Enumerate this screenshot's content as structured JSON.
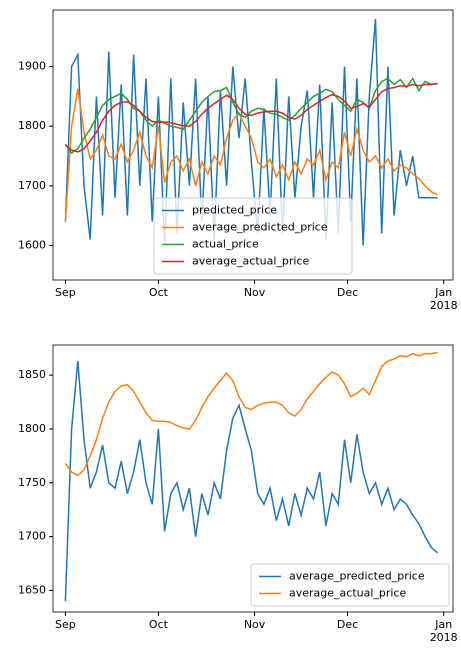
{
  "chart_data": [
    {
      "type": "line",
      "x": [
        0,
        2,
        4,
        6,
        8,
        10,
        12,
        14,
        16,
        18,
        20,
        22,
        24,
        26,
        28,
        30,
        32,
        34,
        36,
        38,
        40,
        42,
        44,
        46,
        48,
        50,
        52,
        54,
        56,
        58,
        60,
        62,
        64,
        66,
        68,
        70,
        72,
        74,
        76,
        78,
        80,
        82,
        84,
        86,
        88,
        90,
        92,
        94,
        96,
        98,
        100,
        102,
        104,
        106,
        108,
        110,
        112,
        114,
        116,
        118,
        120
      ],
      "series": [
        {
          "name": "predicted_price",
          "color": "#1f77b4",
          "values": [
            1640,
            1900,
            1920,
            1700,
            1610,
            1850,
            1650,
            1925,
            1680,
            1870,
            1650,
            1920,
            1700,
            1880,
            1640,
            1850,
            1600,
            1880,
            1620,
            1840,
            1700,
            1880,
            1640,
            1850,
            1610,
            1860,
            1700,
            1900,
            1780,
            1880,
            1740,
            1620,
            1830,
            1650,
            1880,
            1620,
            1850,
            1680,
            1800,
            1860,
            1680,
            1870,
            1610,
            1840,
            1620,
            1900,
            1640,
            1880,
            1600,
            1850,
            1980,
            1620,
            1900,
            1650,
            1760,
            1700,
            1750,
            1680,
            1680,
            1680,
            1680
          ]
        },
        {
          "name": "average_predicted_price",
          "color": "#ff7f0e",
          "values": [
            1640,
            1800,
            1863,
            1790,
            1745,
            1760,
            1785,
            1750,
            1745,
            1770,
            1740,
            1760,
            1790,
            1750,
            1730,
            1800,
            1705,
            1740,
            1750,
            1725,
            1745,
            1700,
            1740,
            1720,
            1750,
            1735,
            1780,
            1810,
            1822,
            1800,
            1780,
            1740,
            1730,
            1745,
            1715,
            1735,
            1710,
            1740,
            1720,
            1745,
            1735,
            1760,
            1710,
            1740,
            1730,
            1790,
            1750,
            1795,
            1760,
            1740,
            1750,
            1730,
            1745,
            1725,
            1735,
            1730,
            1720,
            1712,
            1700,
            1690,
            1685
          ]
        },
        {
          "name": "actual_price",
          "color": "#2ca02c",
          "values": [
            1770,
            1755,
            1762,
            1780,
            1795,
            1815,
            1835,
            1845,
            1850,
            1855,
            1845,
            1830,
            1825,
            1810,
            1800,
            1810,
            1805,
            1800,
            1798,
            1795,
            1810,
            1825,
            1840,
            1850,
            1858,
            1860,
            1865,
            1840,
            1820,
            1815,
            1825,
            1830,
            1828,
            1822,
            1820,
            1815,
            1810,
            1818,
            1830,
            1840,
            1850,
            1855,
            1862,
            1858,
            1845,
            1835,
            1825,
            1845,
            1840,
            1830,
            1860,
            1875,
            1880,
            1870,
            1878,
            1865,
            1880,
            1860,
            1875,
            1870,
            1872
          ]
        },
        {
          "name": "average_actual_price",
          "color": "#d62728",
          "values": [
            1768,
            1760,
            1757,
            1762,
            1775,
            1790,
            1810,
            1825,
            1835,
            1840,
            1841,
            1835,
            1825,
            1815,
            1808,
            1807,
            1807,
            1806,
            1803,
            1801,
            1800,
            1808,
            1820,
            1830,
            1838,
            1845,
            1852,
            1845,
            1830,
            1820,
            1818,
            1822,
            1824,
            1825,
            1825,
            1822,
            1815,
            1812,
            1818,
            1828,
            1835,
            1842,
            1848,
            1853,
            1850,
            1842,
            1830,
            1833,
            1838,
            1832,
            1845,
            1858,
            1863,
            1865,
            1868,
            1867,
            1870,
            1868,
            1870,
            1870,
            1871
          ]
        }
      ],
      "xlim": [
        -4,
        125
      ],
      "xticks": [
        {
          "value": 0,
          "label": "Sep"
        },
        {
          "value": 30,
          "label": "Oct"
        },
        {
          "value": 61,
          "label": "Nov"
        },
        {
          "value": 91,
          "label": "Dec"
        },
        {
          "value": 122,
          "label": "Jan",
          "sublabel": "2018"
        }
      ],
      "ylim": [
        1542,
        1995
      ],
      "yticks": [
        1600,
        1700,
        1800,
        1900
      ],
      "legend": "lower center"
    },
    {
      "type": "line",
      "x": [
        0,
        2,
        4,
        6,
        8,
        10,
        12,
        14,
        16,
        18,
        20,
        22,
        24,
        26,
        28,
        30,
        32,
        34,
        36,
        38,
        40,
        42,
        44,
        46,
        48,
        50,
        52,
        54,
        56,
        58,
        60,
        62,
        64,
        66,
        68,
        70,
        72,
        74,
        76,
        78,
        80,
        82,
        84,
        86,
        88,
        90,
        92,
        94,
        96,
        98,
        100,
        102,
        104,
        106,
        108,
        110,
        112,
        114,
        116,
        118,
        120
      ],
      "series": [
        {
          "name": "average_predicted_price",
          "color": "#1f77b4",
          "values": [
            1640,
            1800,
            1863,
            1790,
            1745,
            1760,
            1785,
            1750,
            1745,
            1770,
            1740,
            1760,
            1790,
            1750,
            1730,
            1800,
            1705,
            1740,
            1750,
            1725,
            1745,
            1700,
            1740,
            1720,
            1750,
            1735,
            1780,
            1810,
            1822,
            1800,
            1780,
            1740,
            1730,
            1745,
            1715,
            1735,
            1710,
            1740,
            1720,
            1745,
            1735,
            1760,
            1710,
            1740,
            1730,
            1790,
            1750,
            1795,
            1760,
            1740,
            1750,
            1730,
            1745,
            1725,
            1735,
            1730,
            1720,
            1712,
            1700,
            1690,
            1685
          ]
        },
        {
          "name": "average_actual_price",
          "color": "#ff7f0e",
          "values": [
            1768,
            1760,
            1757,
            1762,
            1775,
            1790,
            1810,
            1825,
            1835,
            1840,
            1841,
            1835,
            1825,
            1815,
            1808,
            1807,
            1807,
            1806,
            1803,
            1801,
            1800,
            1808,
            1820,
            1830,
            1838,
            1845,
            1852,
            1845,
            1830,
            1820,
            1818,
            1822,
            1824,
            1825,
            1825,
            1822,
            1815,
            1812,
            1818,
            1828,
            1835,
            1842,
            1848,
            1853,
            1850,
            1842,
            1830,
            1833,
            1838,
            1832,
            1845,
            1858,
            1863,
            1865,
            1868,
            1867,
            1870,
            1868,
            1870,
            1870,
            1871
          ]
        }
      ],
      "xlim": [
        -4,
        125
      ],
      "xticks": [
        {
          "value": 0,
          "label": "Sep"
        },
        {
          "value": 30,
          "label": "Oct"
        },
        {
          "value": 61,
          "label": "Nov"
        },
        {
          "value": 91,
          "label": "Dec"
        },
        {
          "value": 122,
          "label": "Jan",
          "sublabel": "2018"
        }
      ],
      "ylim": [
        1630,
        1878
      ],
      "yticks": [
        1650,
        1700,
        1750,
        1800,
        1850
      ],
      "legend": "lower right"
    }
  ]
}
